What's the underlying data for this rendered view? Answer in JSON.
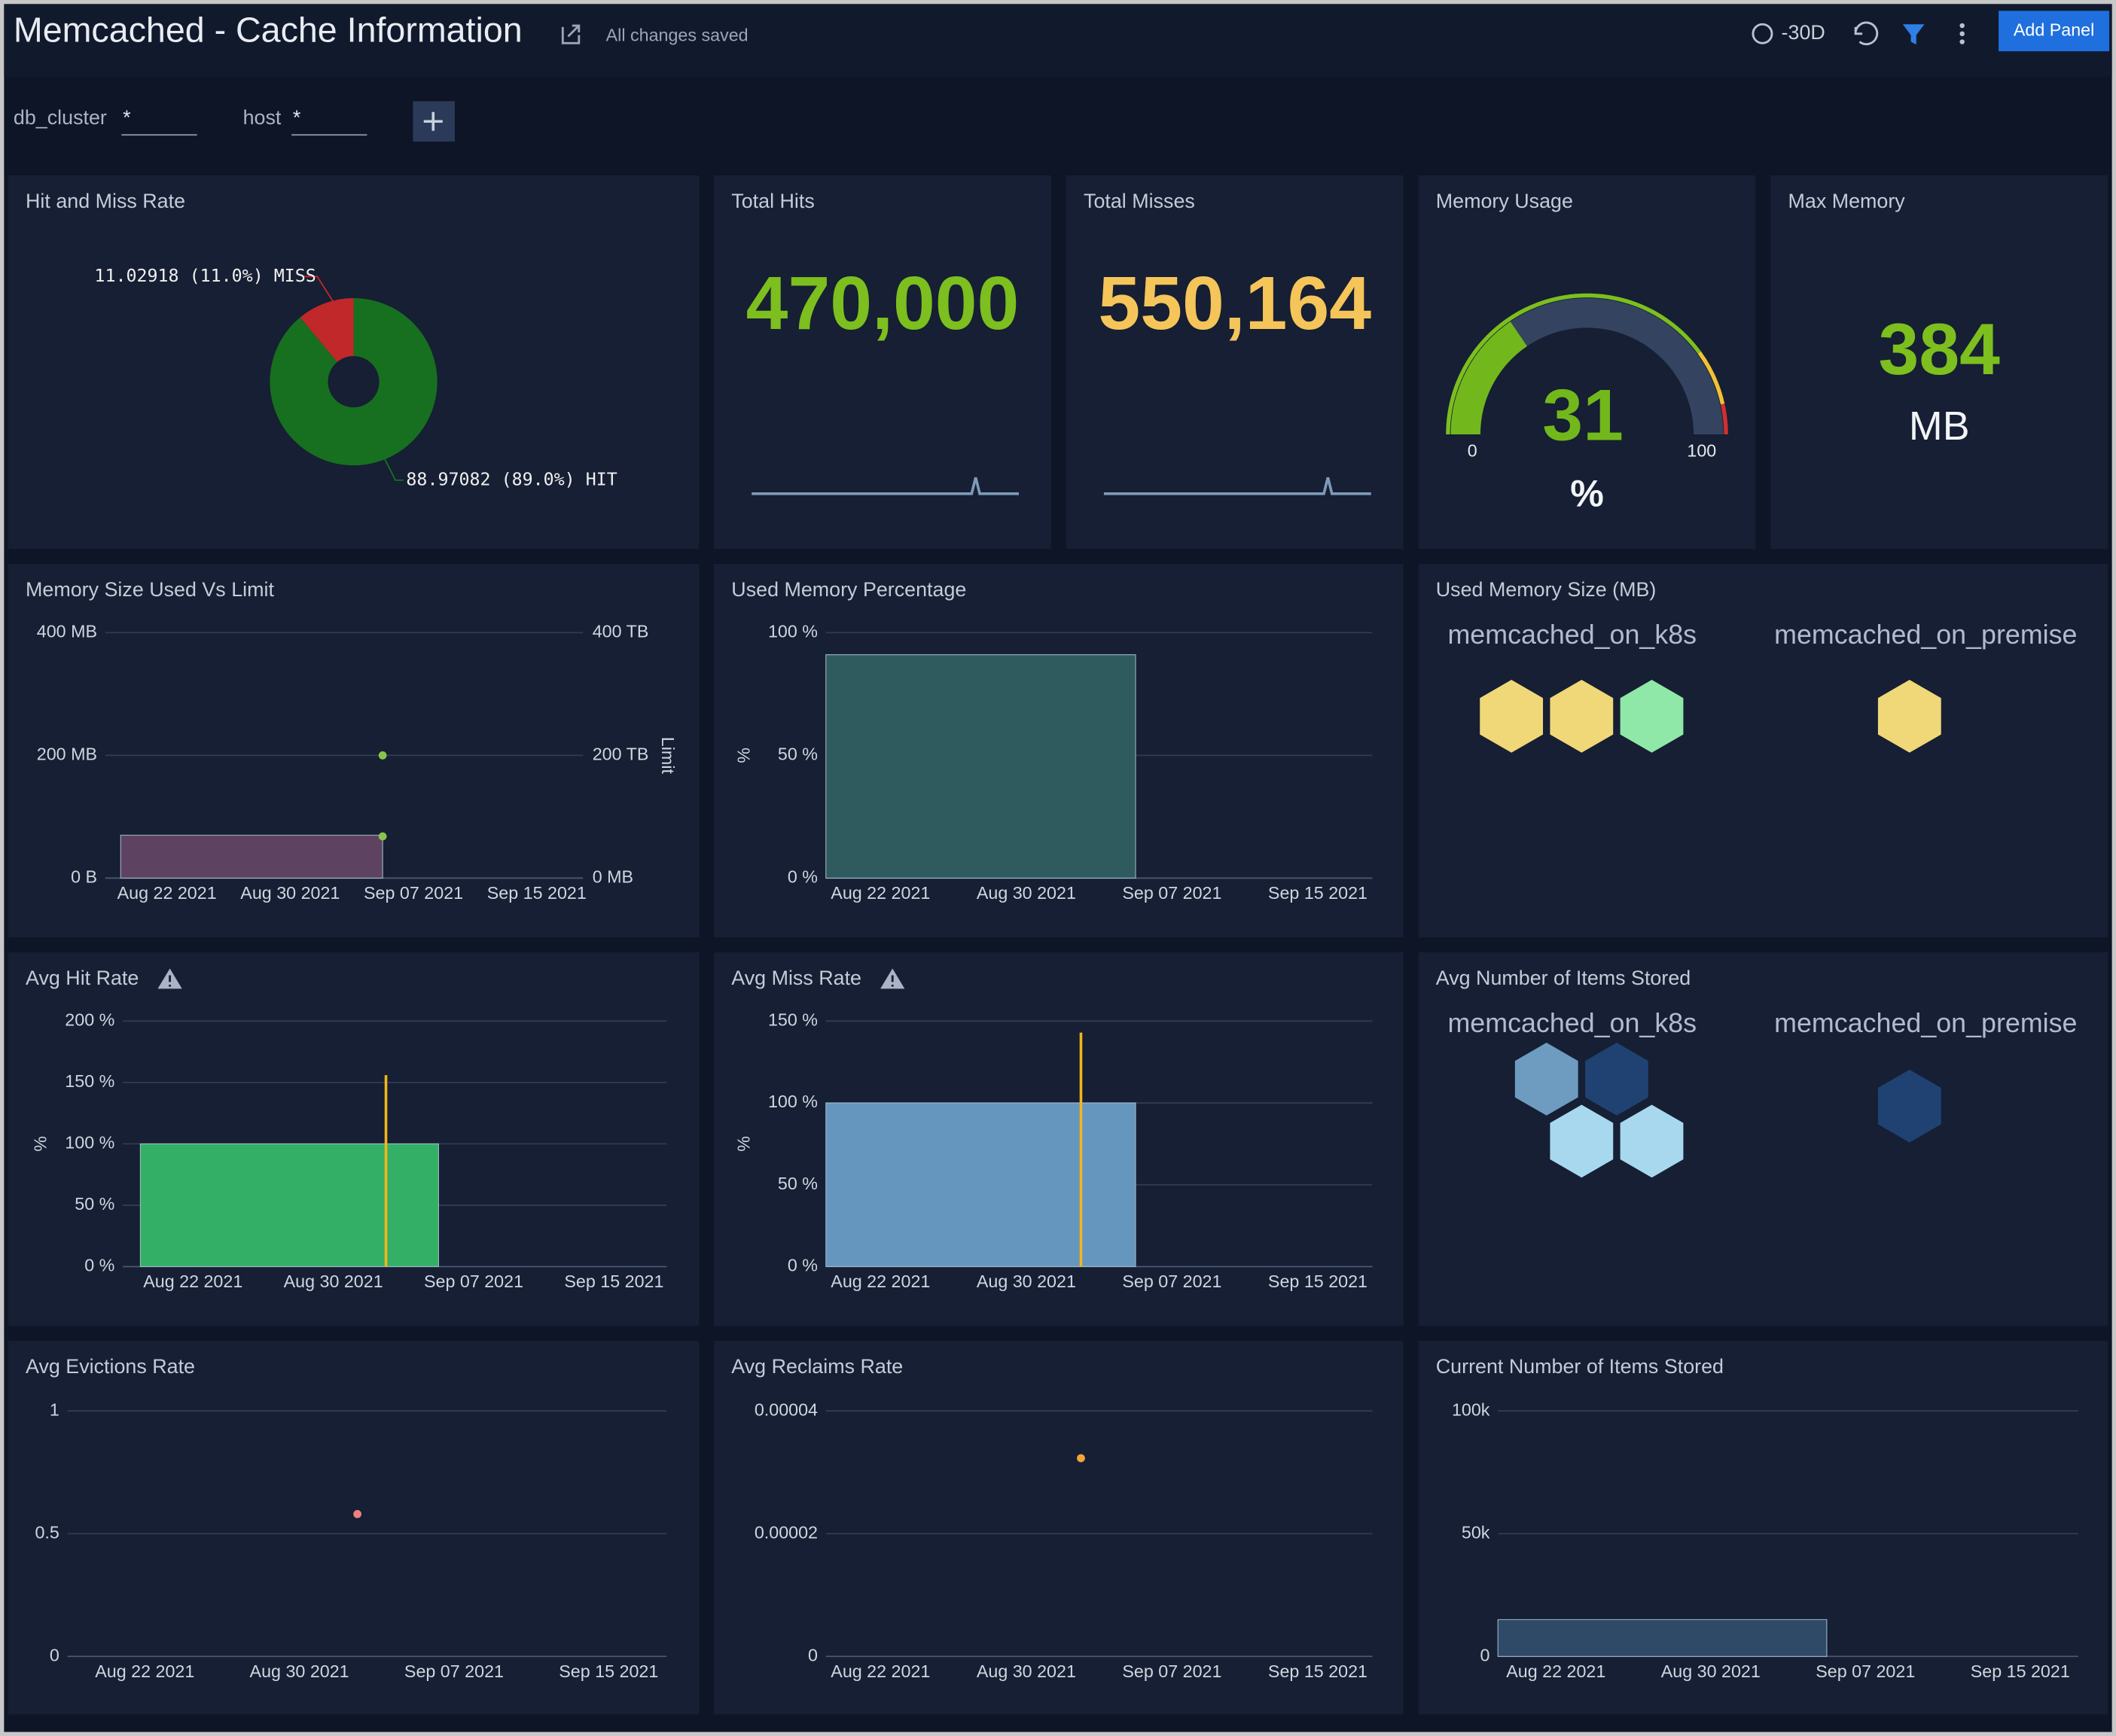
{
  "header": {
    "title": "Memcached - Cache Information",
    "status": "All changes saved",
    "time_range": "-30D",
    "button": "Add Panel"
  },
  "filters": [
    {
      "label": "db_cluster",
      "value": "*"
    },
    {
      "label": "host",
      "value": "*"
    }
  ],
  "panels": [
    {
      "title": "Hit and Miss Rate",
      "chart": {
        "type": "pie",
        "values": [
          11.02918,
          88.97082
        ],
        "value_labels": [
          "11.02918 (11.0%) MISS",
          "88.97082 (89.0%) HIT"
        ],
        "colors": [
          "#c0282a",
          "#17701f"
        ]
      }
    },
    {
      "title": "Total Hits",
      "chart": {
        "type": "single_value",
        "value": 470000,
        "value_label": "470,000",
        "color": "#7cbf1e"
      }
    },
    {
      "title": "Total Misses",
      "chart": {
        "type": "single_value",
        "value": 550164,
        "value_label": "550,164",
        "color": "#f5c55a"
      }
    },
    {
      "title": "Memory Usage",
      "chart": {
        "type": "gauge",
        "value": 31,
        "unit": "%",
        "min": 0,
        "max": 100,
        "color": "#72b81c"
      }
    },
    {
      "title": "Max Memory",
      "chart": {
        "type": "single_value",
        "value": 384,
        "unit": "MB",
        "color": "#7cbf1e"
      }
    },
    {
      "title": "Memory Size Used Vs Limit",
      "chart": {
        "type": "time",
        "xlim": [
          "Aug 18 2021",
          "Sep 18 2021"
        ],
        "xticks": [
          "Aug 22 2021",
          "Aug 30 2021",
          "Sep 07 2021",
          "Sep 15 2021"
        ],
        "ylim": [
          0,
          400
        ],
        "yticks": [
          {
            "value": 0,
            "label": "0 B"
          },
          {
            "value": 200,
            "label": "200 MB"
          },
          {
            "value": 400,
            "label": "400 MB"
          }
        ],
        "y2lim": [
          0,
          400
        ],
        "y2ticks": [
          {
            "value": 0,
            "label": "0 MB"
          },
          {
            "value": 200,
            "label": "200 TB"
          },
          {
            "value": 400,
            "label": "400 TB"
          }
        ],
        "y2label": "Limit",
        "grid": true,
        "series": [
          {
            "style": "area",
            "color": "#5e4262",
            "x": [
              "Aug 19 2021",
              "Sep 05 2021"
            ],
            "values": [
              70,
              70
            ]
          },
          {
            "style": "point",
            "axis": "y2",
            "color": "#8bc34a",
            "x": [
              "Sep 05 2021",
              "Sep 05 2021"
            ],
            "values": [
              200,
              68
            ]
          }
        ]
      }
    },
    {
      "title": "Used Memory Percentage",
      "chart": {
        "type": "time",
        "xlim": [
          "Aug 19 2021",
          "Sep 18 2021"
        ],
        "xticks": [
          "Aug 22 2021",
          "Aug 30 2021",
          "Sep 07 2021",
          "Sep 15 2021"
        ],
        "ylim": [
          0,
          100
        ],
        "yticks": [
          {
            "value": 0,
            "label": "0 %"
          },
          {
            "value": 50,
            "label": "50 %"
          },
          {
            "value": 100,
            "label": "100 %"
          }
        ],
        "ylabel": "%",
        "grid": true,
        "series": [
          {
            "style": "area",
            "color": "#2f5a5e",
            "x": [
              "Aug 19 2021",
              "Sep 05 2021"
            ],
            "values": [
              91,
              91
            ]
          }
        ]
      }
    },
    {
      "title": "Used Memory Size (MB)",
      "chart": {
        "type": "honeycomb",
        "groups": [
          {
            "name": "memcached_on_k8s",
            "cells": [
              "#f0d878",
              "#f0d878",
              "#90e8a8"
            ]
          },
          {
            "name": "memcached_on_premise",
            "cells": [
              "#f0d878"
            ]
          }
        ]
      }
    },
    {
      "title": "Avg Hit Rate",
      "warning": true,
      "chart": {
        "type": "time",
        "xlim": [
          "Aug 18 2021",
          "Sep 18 2021"
        ],
        "xticks": [
          "Aug 22 2021",
          "Aug 30 2021",
          "Sep 07 2021",
          "Sep 15 2021"
        ],
        "ylim": [
          0,
          200
        ],
        "yticks": [
          {
            "value": 0,
            "label": "0 %"
          },
          {
            "value": 50,
            "label": "50 %"
          },
          {
            "value": 100,
            "label": "100 %"
          },
          {
            "value": 150,
            "label": "150 %"
          },
          {
            "value": 200,
            "label": "200 %"
          }
        ],
        "ylabel": "%",
        "grid": true,
        "series": [
          {
            "style": "area",
            "color": "#33b065",
            "x": [
              "Aug 19 2021",
              "Sep 05 2021"
            ],
            "values": [
              100,
              100
            ]
          },
          {
            "style": "spike",
            "color": "#f1b51c",
            "x": [
              "Sep 02 2021"
            ],
            "values": [
              156
            ]
          }
        ]
      }
    },
    {
      "title": "Avg Miss Rate",
      "warning": true,
      "chart": {
        "type": "time",
        "xlim": [
          "Aug 19 2021",
          "Sep 18 2021"
        ],
        "xticks": [
          "Aug 22 2021",
          "Aug 30 2021",
          "Sep 07 2021",
          "Sep 15 2021"
        ],
        "ylim": [
          0,
          150
        ],
        "yticks": [
          {
            "value": 0,
            "label": "0 %"
          },
          {
            "value": 50,
            "label": "50 %"
          },
          {
            "value": 100,
            "label": "100 %"
          },
          {
            "value": 150,
            "label": "150 %"
          }
        ],
        "ylabel": "%",
        "grid": true,
        "series": [
          {
            "style": "area",
            "color": "#6596be",
            "x": [
              "Aug 19 2021",
              "Sep 05 2021"
            ],
            "values": [
              100,
              100
            ]
          },
          {
            "style": "spike",
            "color": "#f1b51c",
            "x": [
              "Sep 02 2021"
            ],
            "values": [
              143
            ]
          }
        ]
      }
    },
    {
      "title": "Avg Number of Items Stored",
      "chart": {
        "type": "honeycomb",
        "groups": [
          {
            "name": "memcached_on_k8s",
            "cells": [
              "#6e9cc0",
              "#1f4272",
              "#a8d8ee",
              "#a8d8ee"
            ]
          },
          {
            "name": "memcached_on_premise",
            "cells": [
              "#1f4272"
            ]
          }
        ]
      }
    },
    {
      "title": "Avg Evictions Rate",
      "chart": {
        "type": "time",
        "xlim": [
          "Aug 18 2021",
          "Sep 18 2021"
        ],
        "xticks": [
          "Aug 22 2021",
          "Aug 30 2021",
          "Sep 07 2021",
          "Sep 15 2021"
        ],
        "ylim": [
          0,
          1
        ],
        "yticks": [
          0,
          0.5,
          1
        ],
        "grid": true,
        "series": [
          {
            "style": "point",
            "color": "#f08080",
            "x": [
              "Sep 02 2021"
            ],
            "values": [
              0.58
            ]
          }
        ]
      }
    },
    {
      "title": "Avg Reclaims Rate",
      "chart": {
        "type": "time",
        "xlim": [
          "Aug 19 2021",
          "Sep 18 2021"
        ],
        "xticks": [
          "Aug 22 2021",
          "Aug 30 2021",
          "Sep 07 2021",
          "Sep 15 2021"
        ],
        "ylim": [
          0,
          4e-05
        ],
        "yticks": [
          0,
          2e-05,
          4e-05
        ],
        "grid": true,
        "series": [
          {
            "style": "point",
            "color": "#f5a43a",
            "x": [
              "Sep 02 2021"
            ],
            "values": [
              3.23e-05
            ]
          }
        ]
      }
    },
    {
      "title": "Current Number of Items Stored",
      "chart": {
        "type": "time",
        "xlim": [
          "Aug 19 2021",
          "Sep 18 2021"
        ],
        "xticks": [
          "Aug 22 2021",
          "Aug 30 2021",
          "Sep 07 2021",
          "Sep 15 2021"
        ],
        "ylim": [
          0,
          100000
        ],
        "yticks": [
          0,
          {
            "value": 50000,
            "label": "50k"
          },
          {
            "value": 100000,
            "label": "100k"
          }
        ],
        "grid": true,
        "series": [
          {
            "style": "area",
            "color": "#2e4a66",
            "x": [
              "Aug 19 2021",
              "Sep 05 2021"
            ],
            "values": [
              15000,
              15000
            ]
          }
        ]
      }
    }
  ]
}
